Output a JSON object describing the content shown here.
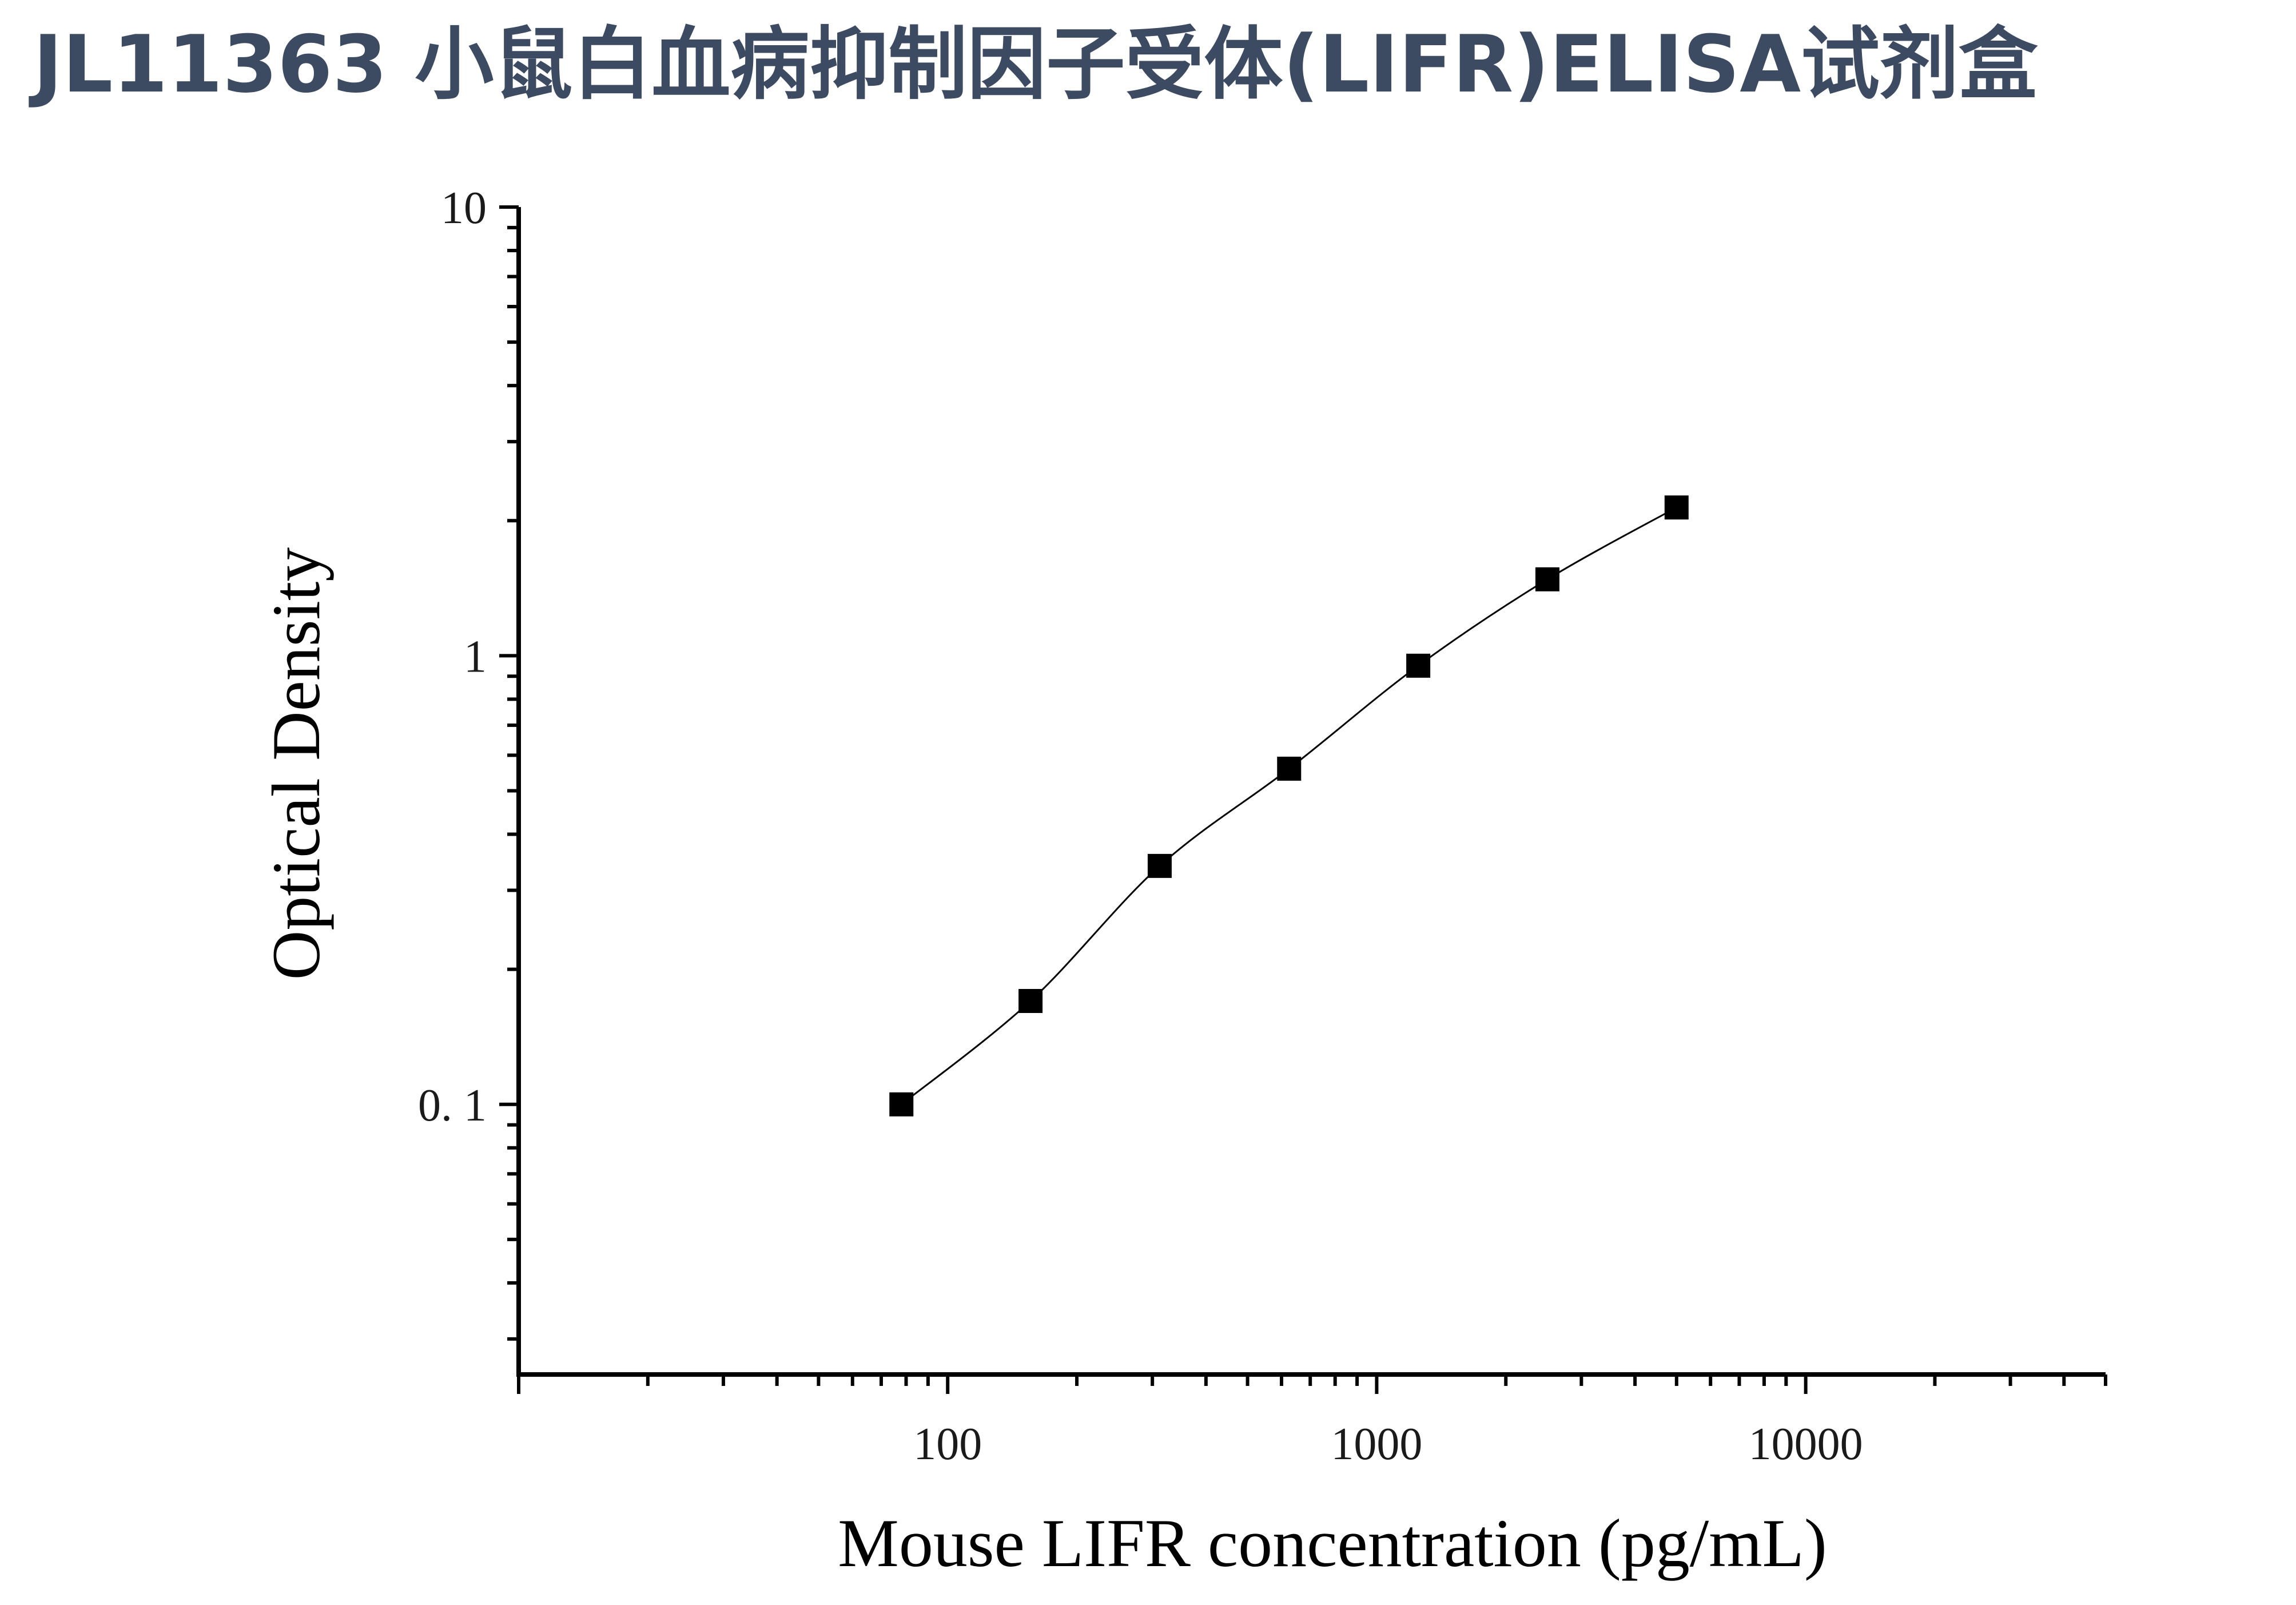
{
  "title": "JL11363 小鼠白血病抑制因子受体(LIFR)ELISA试剂盒",
  "chart_data": {
    "type": "scatter",
    "title": "JL11363 小鼠白血病抑制因子受体(LIFR)ELISA试剂盒",
    "xlabel": "Mouse LIFR concentration (pg/mL)",
    "ylabel": "Optical Density",
    "x_scale": "log",
    "y_scale": "log",
    "xlim": [
      10,
      50000
    ],
    "ylim": [
      0.025,
      10
    ],
    "x_ticks": [
      {
        "value": 100,
        "label": "100"
      },
      {
        "value": 1000,
        "label": "1000"
      },
      {
        "value": 10000,
        "label": "10000"
      }
    ],
    "y_ticks": [
      {
        "value": 0.1,
        "label": "0. 1"
      },
      {
        "value": 1,
        "label": "1"
      },
      {
        "value": 10,
        "label": "10"
      }
    ],
    "grid": false,
    "legend": "none",
    "marker": "square",
    "fitted_curve": true,
    "color": "#000000",
    "series": [
      {
        "x": [
          78,
          156,
          312,
          625,
          1250,
          2500,
          5000
        ],
        "y": [
          0.1,
          0.17,
          0.34,
          0.56,
          0.95,
          1.48,
          2.14
        ]
      }
    ]
  }
}
